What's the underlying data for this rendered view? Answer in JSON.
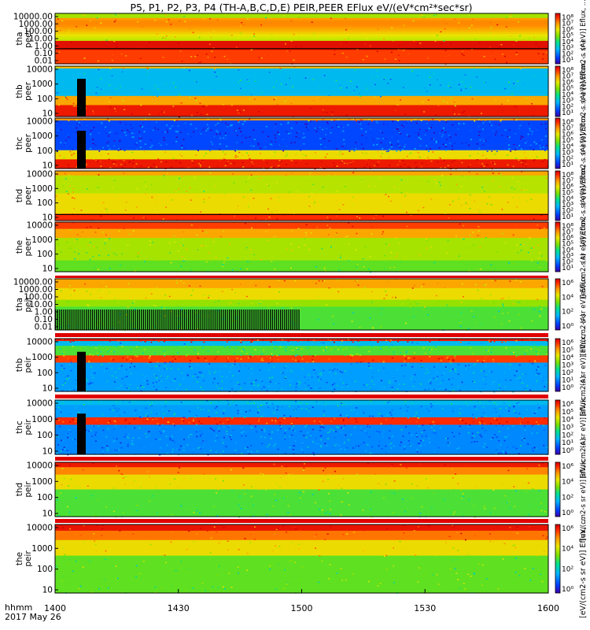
{
  "chart_data": {
    "type": "heatmap",
    "title": "P5, P1, P2, P3, P4 (TH-A,B,C,D,E) PEIR,PEER EFlux eV/(eV*cm²*sec*sr)",
    "xlabel_line1": "hhmm",
    "xlabel_line2": "2017 May 26",
    "x_ticks": [
      "1400",
      "1430",
      "1500",
      "1530",
      "1600"
    ],
    "colorbar_label": "[eV/(cm2-s sr eV)] Eflux, ... (A)",
    "colorbar_label_last": "[eV/(cm2-s sr eV)] Eflux, ...",
    "panels": [
      {
        "probe": "tha",
        "species": "peer",
        "yticks": [
          "10000.00",
          "1000.00",
          "100.00",
          "10.00",
          "1.00",
          "0.10",
          "0.01"
        ],
        "ylim": [
          0.01,
          30000
        ],
        "cbar_ticks": [
          "10⁸",
          "10⁷",
          "10⁶",
          "10⁵",
          "10⁴",
          "10³",
          "10²",
          "10¹"
        ]
      },
      {
        "probe": "thb",
        "species": "peer",
        "yticks": [
          "10000",
          "1000",
          "100",
          "10"
        ],
        "ylim": [
          7,
          30000
        ],
        "cbar_ticks": [
          "10⁸",
          "10⁷",
          "10⁶",
          "10⁵",
          "10⁴",
          "10³",
          "10²",
          "10¹"
        ]
      },
      {
        "probe": "thc",
        "species": "peer",
        "yticks": [
          "10000",
          "1000",
          "100",
          "10"
        ],
        "ylim": [
          7,
          30000
        ],
        "cbar_ticks": [
          "10⁸",
          "10⁷",
          "10⁶",
          "10⁵",
          "10⁴",
          "10³",
          "10²",
          "10¹"
        ]
      },
      {
        "probe": "thd",
        "species": "peer",
        "yticks": [
          "10000",
          "1000",
          "100",
          "10"
        ],
        "ylim": [
          7,
          30000
        ],
        "cbar_ticks": [
          "10⁸",
          "10⁷",
          "10⁶",
          "10⁵",
          "10⁴",
          "10³",
          "10²",
          "10¹"
        ]
      },
      {
        "probe": "the",
        "species": "peer",
        "yticks": [
          "10000",
          "1000",
          "100",
          "10"
        ],
        "ylim": [
          7,
          30000
        ],
        "cbar_ticks": [
          "10⁸",
          "10⁷",
          "10⁶",
          "10⁵",
          "10⁴",
          "10³",
          "10²",
          "10¹"
        ]
      },
      {
        "probe": "tha",
        "species": "peir",
        "yticks": [
          "10000.00",
          "1000.00",
          "100.00",
          "10.00",
          "1.00",
          "0.10",
          "0.01"
        ],
        "ylim": [
          0.01,
          30000
        ],
        "cbar_ticks": [
          "10⁶",
          "10⁴",
          "10²",
          "10⁰"
        ]
      },
      {
        "probe": "thb",
        "species": "peir",
        "yticks": [
          "10000",
          "1000",
          "100",
          "10"
        ],
        "ylim": [
          7,
          30000
        ],
        "cbar_ticks": [
          "10⁶",
          "10⁵",
          "10⁴",
          "10³",
          "10²",
          "10¹",
          "10⁰"
        ]
      },
      {
        "probe": "thc",
        "species": "peir",
        "yticks": [
          "10000",
          "1000",
          "100",
          "10"
        ],
        "ylim": [
          7,
          30000
        ],
        "cbar_ticks": [
          "10⁶",
          "10⁵",
          "10⁴",
          "10³",
          "10²",
          "10¹",
          "10⁰"
        ]
      },
      {
        "probe": "thd",
        "species": "peir",
        "yticks": [
          "10000",
          "1000",
          "100",
          "10"
        ],
        "ylim": [
          7,
          30000
        ],
        "cbar_ticks": [
          "10⁶",
          "10⁴",
          "10²",
          "10⁰"
        ]
      },
      {
        "probe": "the",
        "species": "peir",
        "yticks": [
          "10000",
          "1000",
          "100",
          "10"
        ],
        "ylim": [
          7,
          30000
        ],
        "cbar_ticks": [
          "10⁶",
          "10⁴",
          "10²",
          "10⁰"
        ]
      }
    ]
  }
}
